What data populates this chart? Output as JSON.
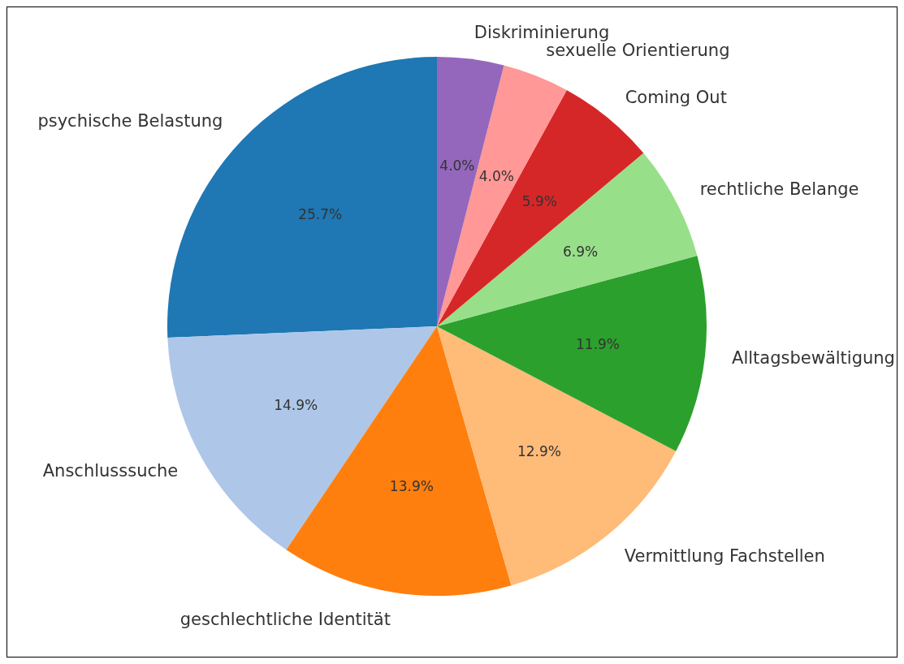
{
  "chart_data": {
    "type": "pie",
    "categories": [
      "psychische Belastung",
      "Anschlusssuche",
      "geschlechtliche Identität",
      "Vermittlung Fachstellen",
      "Alltagsbewältigung",
      "rechtliche Belange",
      "Coming Out",
      "sexuelle Orientierung",
      "Diskriminierung"
    ],
    "values": [
      25.7,
      14.9,
      13.9,
      12.9,
      11.9,
      6.9,
      5.9,
      4.0,
      4.0
    ],
    "colors": [
      "#1f77b4",
      "#aec7e8",
      "#ff7f0e",
      "#ffbb78",
      "#2ca02c",
      "#98df8a",
      "#d62728",
      "#ff9896",
      "#9467bd"
    ],
    "value_labels": [
      "25.7%",
      "14.9%",
      "13.9%",
      "12.9%",
      "11.9%",
      "6.9%",
      "5.9%",
      "4.0%",
      "4.0%"
    ]
  }
}
